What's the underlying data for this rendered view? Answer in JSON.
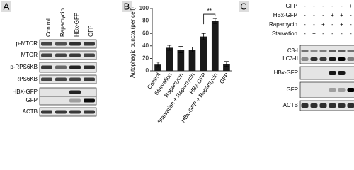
{
  "chart_data": {
    "type": "bar",
    "panel": "B",
    "ylabel": "Autophagic puncta (per cell)",
    "categories": [
      "Control",
      "Starvation",
      "Rapamycin",
      "Starvation + Rapamycin",
      "HBx-GFP",
      "HBx-GFP + Rapamycin",
      "GFP"
    ],
    "values": [
      10,
      37,
      34,
      34,
      55,
      80,
      11
    ],
    "errors": [
      4,
      4,
      5,
      4,
      5,
      4,
      4
    ],
    "color": "#1a1a1a",
    "ylim": [
      0,
      100
    ],
    "yticks": [
      0,
      20,
      40,
      60,
      80,
      100
    ],
    "annotation": "**"
  },
  "panel_a": {
    "label": "A",
    "lanes": [
      "Control",
      "Rapamycin",
      "HBx-GFP",
      "GFP"
    ],
    "rows": [
      "p-MTOR",
      "MTOR",
      "p-RPS6KB",
      "RPS6KB",
      "HBX-GFP",
      "GFP",
      "ACTB"
    ]
  },
  "panel_c": {
    "label": "C",
    "conditions": [
      {
        "name": "GFP",
        "signs": [
          "-",
          "-",
          "-",
          "-",
          "-",
          "+"
        ]
      },
      {
        "name": "HBx-GFP",
        "signs": [
          "-",
          "-",
          "-",
          "+",
          "+",
          "-"
        ]
      },
      {
        "name": "Rapamycin",
        "signs": [
          "-",
          "-",
          "+",
          "-",
          "+",
          "-"
        ]
      },
      {
        "name": "Starvation",
        "signs": [
          "-",
          "+",
          "-",
          "-",
          "-",
          "-"
        ]
      }
    ],
    "rows": [
      "LC3-I",
      "LC3-II",
      "HBx-GFP",
      "GFP",
      "ACTB"
    ]
  }
}
